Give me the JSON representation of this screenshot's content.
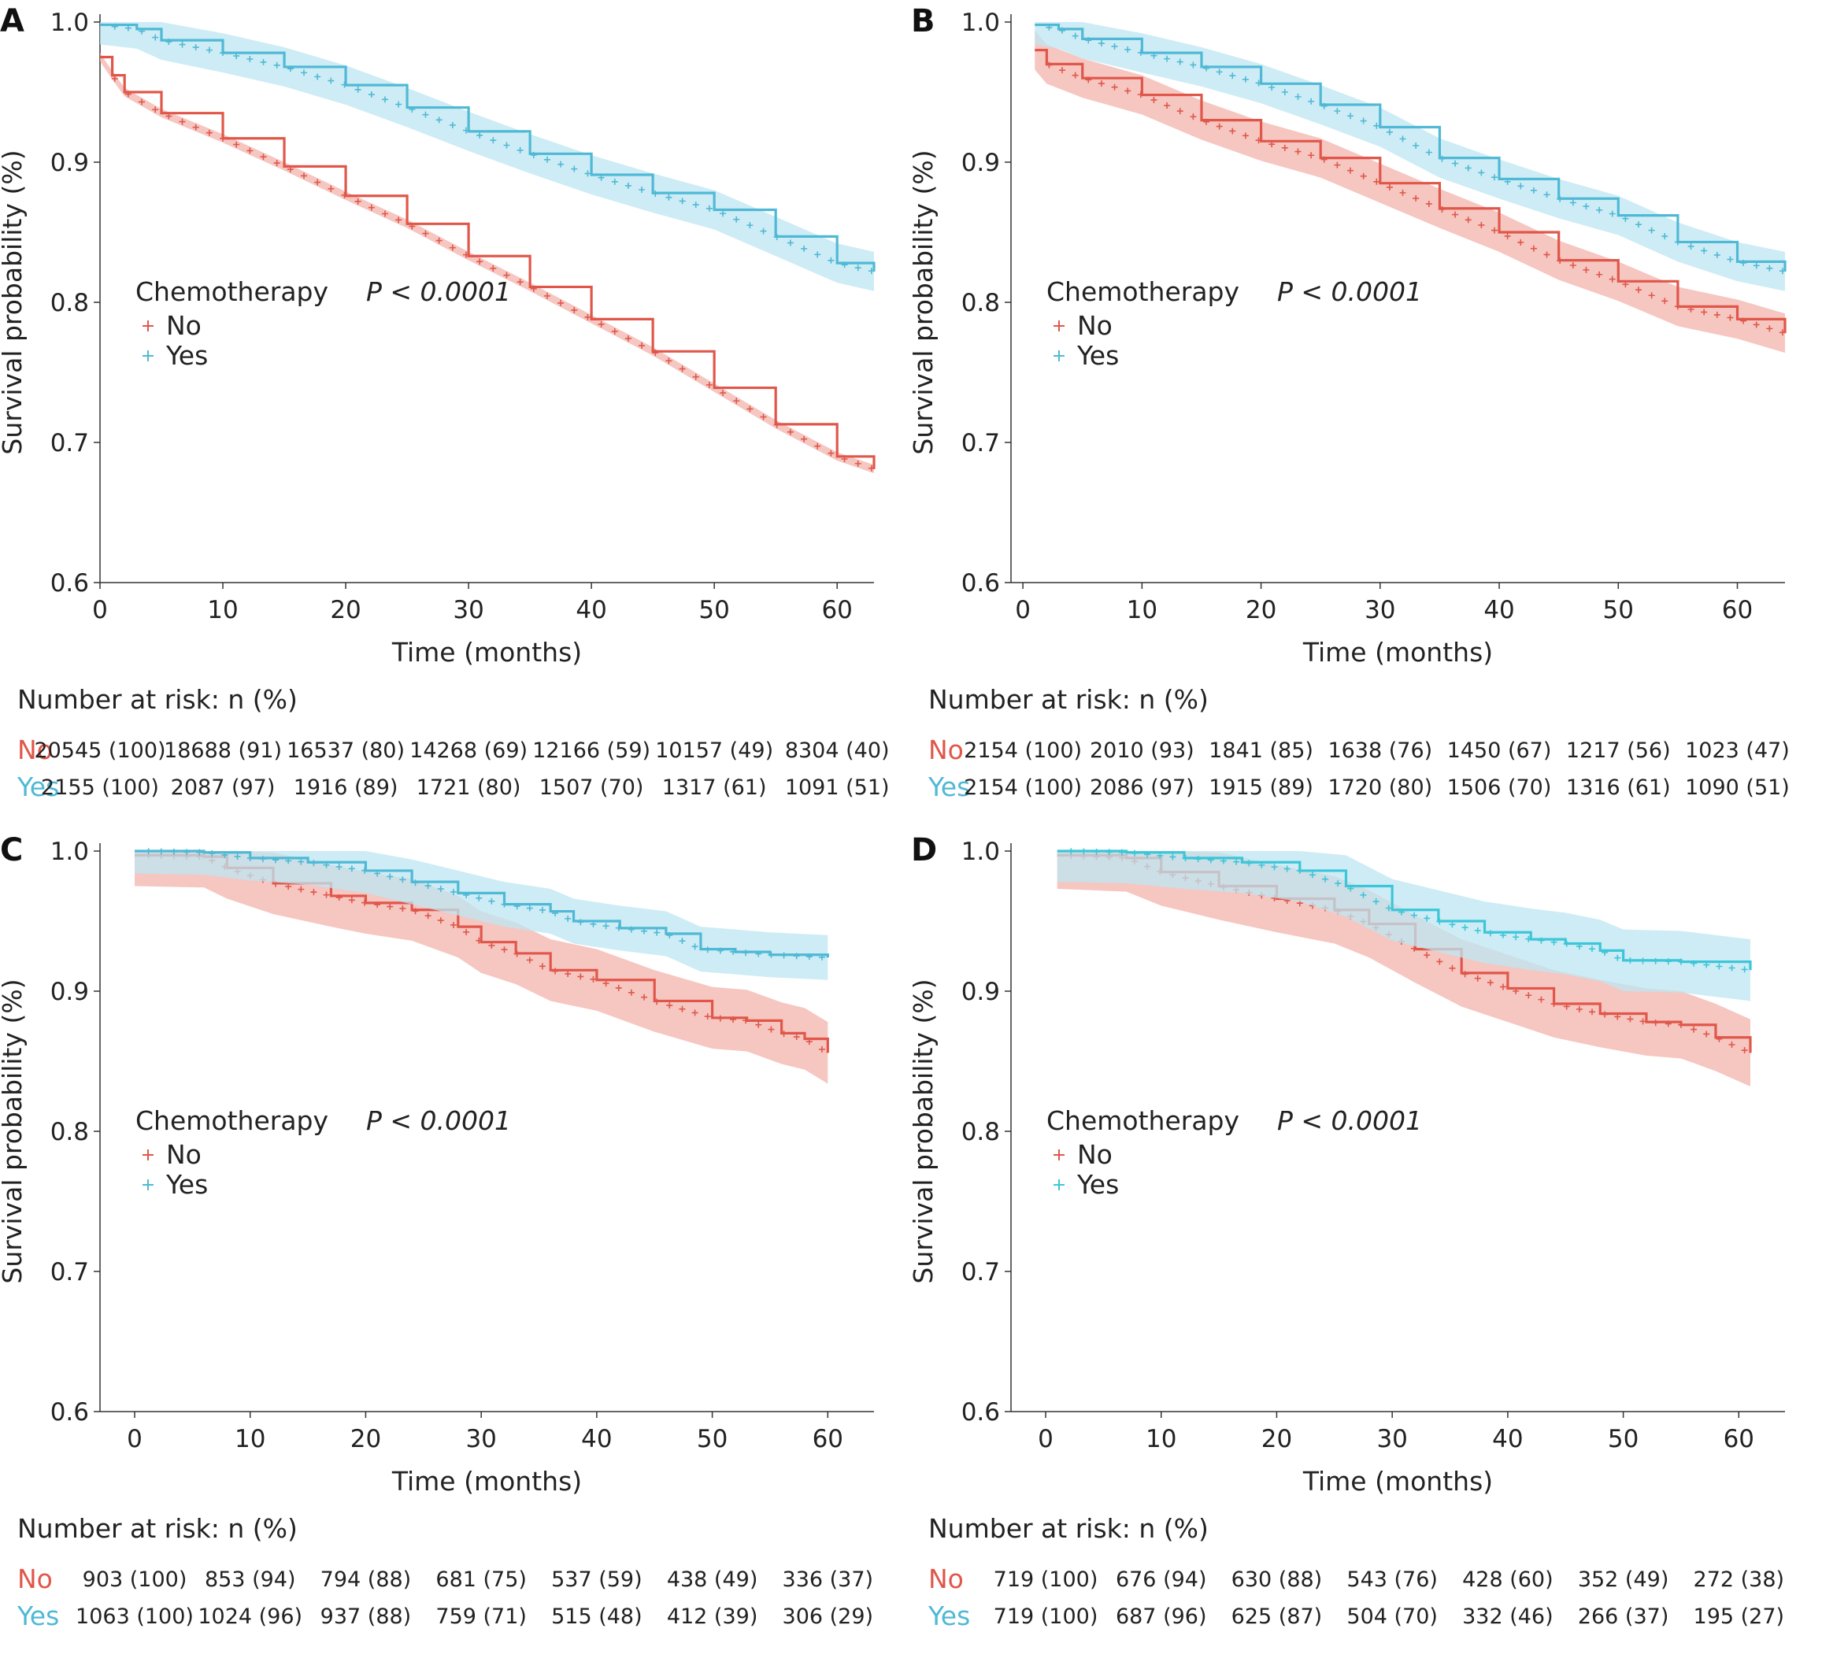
{
  "colors": {
    "no": "#E0574A",
    "yes": "#4FB9D5",
    "yes_alt": "#3CC6D8",
    "no_ci": "#F3B3AC",
    "yes_ci": "#BDE6F2",
    "axis": "#333333"
  },
  "risk_table_title": "Number at risk: n (%)",
  "chart_data": [
    {
      "panel": "A",
      "type": "line",
      "xlabel": "Time (months)",
      "ylabel": "Survival probability (%)",
      "xlim": [
        0,
        63
      ],
      "ylim": [
        0.6,
        1.0
      ],
      "x_ticks": [
        0,
        10,
        20,
        30,
        40,
        50,
        60
      ],
      "y_ticks": [
        "0.6",
        "0.7",
        "0.8",
        "0.9",
        "1.0"
      ],
      "legend_title": "Chemotherapy",
      "pvalue": "P < 0.0001",
      "legend_position": "bottom-left",
      "series": [
        {
          "name": "No",
          "color": "#E0574A",
          "points": [
            [
              0,
              0.975
            ],
            [
              1,
              0.962
            ],
            [
              2,
              0.95
            ],
            [
              5,
              0.935
            ],
            [
              10,
              0.917
            ],
            [
              15,
              0.897
            ],
            [
              20,
              0.876
            ],
            [
              25,
              0.856
            ],
            [
              30,
              0.833
            ],
            [
              35,
              0.811
            ],
            [
              40,
              0.788
            ],
            [
              45,
              0.765
            ],
            [
              50,
              0.739
            ],
            [
              55,
              0.713
            ],
            [
              60,
              0.69
            ],
            [
              63,
              0.681
            ]
          ],
          "ci_halfwidth": 0.003
        },
        {
          "name": "Yes",
          "color": "#4FB9D5",
          "points": [
            [
              0,
              0.998
            ],
            [
              3,
              0.995
            ],
            [
              5,
              0.987
            ],
            [
              10,
              0.978
            ],
            [
              15,
              0.968
            ],
            [
              20,
              0.955
            ],
            [
              25,
              0.939
            ],
            [
              30,
              0.922
            ],
            [
              35,
              0.906
            ],
            [
              40,
              0.891
            ],
            [
              45,
              0.878
            ],
            [
              50,
              0.866
            ],
            [
              55,
              0.847
            ],
            [
              60,
              0.828
            ],
            [
              63,
              0.822
            ]
          ],
          "ci_halfwidth": 0.014
        }
      ],
      "risk_table": {
        "groups": [
          {
            "name": "No",
            "values": [
              "20545 (100)",
              "18688 (91)",
              "16537 (80)",
              "14268 (69)",
              "12166 (59)",
              "10157 (49)",
              "8304 (40)"
            ]
          },
          {
            "name": "Yes",
            "values": [
              "2155 (100)",
              "2087 (97)",
              "1916 (89)",
              "1721 (80)",
              "1507 (70)",
              "1317 (61)",
              "1091 (51)"
            ]
          }
        ]
      }
    },
    {
      "panel": "B",
      "type": "line",
      "xlabel": "Time (months)",
      "ylabel": "Survival probability (%)",
      "xlim": [
        -1,
        64
      ],
      "ylim": [
        0.6,
        1.0
      ],
      "x_ticks": [
        0,
        10,
        20,
        30,
        40,
        50,
        60
      ],
      "y_ticks": [
        "0.6",
        "0.7",
        "0.8",
        "0.9",
        "1.0"
      ],
      "legend_title": "Chemotherapy",
      "pvalue": "P < 0.0001",
      "legend_position": "bottom-left",
      "series": [
        {
          "name": "No",
          "color": "#E0574A",
          "points": [
            [
              1,
              0.98
            ],
            [
              2,
              0.97
            ],
            [
              5,
              0.96
            ],
            [
              10,
              0.948
            ],
            [
              15,
              0.93
            ],
            [
              20,
              0.915
            ],
            [
              25,
              0.903
            ],
            [
              30,
              0.885
            ],
            [
              35,
              0.867
            ],
            [
              40,
              0.85
            ],
            [
              45,
              0.83
            ],
            [
              50,
              0.815
            ],
            [
              55,
              0.797
            ],
            [
              60,
              0.788
            ],
            [
              64,
              0.778
            ]
          ],
          "ci_halfwidth": 0.014
        },
        {
          "name": "Yes",
          "color": "#4FB9D5",
          "points": [
            [
              1,
              0.998
            ],
            [
              3,
              0.995
            ],
            [
              5,
              0.988
            ],
            [
              10,
              0.978
            ],
            [
              15,
              0.968
            ],
            [
              20,
              0.956
            ],
            [
              25,
              0.941
            ],
            [
              30,
              0.925
            ],
            [
              35,
              0.903
            ],
            [
              40,
              0.888
            ],
            [
              45,
              0.874
            ],
            [
              50,
              0.862
            ],
            [
              55,
              0.843
            ],
            [
              60,
              0.829
            ],
            [
              64,
              0.822
            ]
          ],
          "ci_halfwidth": 0.014
        }
      ],
      "risk_table": {
        "groups": [
          {
            "name": "No",
            "values": [
              "2154 (100)",
              "2010 (93)",
              "1841 (85)",
              "1638 (76)",
              "1450 (67)",
              "1217 (56)",
              "1023 (47)"
            ]
          },
          {
            "name": "Yes",
            "values": [
              "2154 (100)",
              "2086 (97)",
              "1915 (89)",
              "1720 (80)",
              "1506 (70)",
              "1316 (61)",
              "1090 (51)"
            ]
          }
        ]
      }
    },
    {
      "panel": "C",
      "type": "line",
      "xlabel": "Time (months)",
      "ylabel": "Survival probability (%)",
      "xlim": [
        -3,
        64
      ],
      "ylim": [
        0.6,
        1.0
      ],
      "x_ticks": [
        0,
        10,
        20,
        30,
        40,
        50,
        60
      ],
      "y_ticks": [
        "0.6",
        "0.7",
        "0.8",
        "0.9",
        "1.0"
      ],
      "legend_title": "Chemotherapy",
      "pvalue": "P < 0.0001",
      "legend_position": "bottom-left",
      "series": [
        {
          "name": "No",
          "color": "#E0574A",
          "points": [
            [
              0,
              0.997
            ],
            [
              6,
              0.996
            ],
            [
              8,
              0.988
            ],
            [
              12,
              0.977
            ],
            [
              17,
              0.968
            ],
            [
              20,
              0.963
            ],
            [
              24,
              0.958
            ],
            [
              28,
              0.946
            ],
            [
              30,
              0.935
            ],
            [
              33,
              0.927
            ],
            [
              36,
              0.915
            ],
            [
              40,
              0.908
            ],
            [
              45,
              0.893
            ],
            [
              50,
              0.881
            ],
            [
              53,
              0.879
            ],
            [
              56,
              0.87
            ],
            [
              58,
              0.866
            ],
            [
              60,
              0.856
            ]
          ],
          "ci_halfwidth": 0.022
        },
        {
          "name": "Yes",
          "color": "#4FB9D5",
          "points": [
            [
              0,
              1.0
            ],
            [
              6,
              0.999
            ],
            [
              10,
              0.995
            ],
            [
              15,
              0.992
            ],
            [
              20,
              0.986
            ],
            [
              24,
              0.978
            ],
            [
              28,
              0.97
            ],
            [
              32,
              0.962
            ],
            [
              36,
              0.957
            ],
            [
              38,
              0.95
            ],
            [
              42,
              0.945
            ],
            [
              46,
              0.941
            ],
            [
              49,
              0.93
            ],
            [
              52,
              0.928
            ],
            [
              55,
              0.926
            ],
            [
              60,
              0.924
            ]
          ],
          "ci_halfwidth": 0.016
        }
      ],
      "risk_table": {
        "groups": [
          {
            "name": "No",
            "values": [
              "903 (100)",
              "853 (94)",
              "794 (88)",
              "681 (75)",
              "537 (59)",
              "438 (49)",
              "336 (37)"
            ]
          },
          {
            "name": "Yes",
            "values": [
              "1063 (100)",
              "1024 (96)",
              "937 (88)",
              "759 (71)",
              "515 (48)",
              "412 (39)",
              "306 (29)"
            ]
          }
        ]
      }
    },
    {
      "panel": "D",
      "type": "line",
      "xlabel": "Time (months)",
      "ylabel": "Survival probability (%)",
      "xlim": [
        -3,
        64
      ],
      "ylim": [
        0.6,
        1.0
      ],
      "x_ticks": [
        0,
        10,
        20,
        30,
        40,
        50,
        60
      ],
      "y_ticks": [
        "0.6",
        "0.7",
        "0.8",
        "0.9",
        "1.0"
      ],
      "legend_title": "Chemotherapy",
      "pvalue": "P < 0.0001",
      "legend_position": "bottom-left",
      "series": [
        {
          "name": "No",
          "color": "#E0574A",
          "points": [
            [
              1,
              0.997
            ],
            [
              7,
              0.995
            ],
            [
              10,
              0.985
            ],
            [
              15,
              0.975
            ],
            [
              20,
              0.966
            ],
            [
              25,
              0.958
            ],
            [
              28,
              0.948
            ],
            [
              32,
              0.93
            ],
            [
              36,
              0.913
            ],
            [
              40,
              0.902
            ],
            [
              44,
              0.891
            ],
            [
              48,
              0.884
            ],
            [
              52,
              0.878
            ],
            [
              55,
              0.876
            ],
            [
              58,
              0.867
            ],
            [
              61,
              0.856
            ]
          ],
          "ci_halfwidth": 0.024
        },
        {
          "name": "Yes",
          "color": "#3CC6D8",
          "points": [
            [
              1,
              1.0
            ],
            [
              7,
              0.999
            ],
            [
              12,
              0.995
            ],
            [
              17,
              0.992
            ],
            [
              22,
              0.986
            ],
            [
              26,
              0.975
            ],
            [
              30,
              0.958
            ],
            [
              34,
              0.95
            ],
            [
              38,
              0.942
            ],
            [
              42,
              0.937
            ],
            [
              45,
              0.934
            ],
            [
              48,
              0.929
            ],
            [
              50,
              0.922
            ],
            [
              55,
              0.921
            ],
            [
              61,
              0.915
            ]
          ],
          "ci_halfwidth": 0.022
        }
      ],
      "risk_table": {
        "groups": [
          {
            "name": "No",
            "values": [
              "719 (100)",
              "676 (94)",
              "630 (88)",
              "543 (76)",
              "428 (60)",
              "352 (49)",
              "272 (38)"
            ]
          },
          {
            "name": "Yes",
            "values": [
              "719 (100)",
              "687 (96)",
              "625 (87)",
              "504 (70)",
              "332 (46)",
              "266 (37)",
              "195 (27)"
            ]
          }
        ]
      }
    }
  ]
}
